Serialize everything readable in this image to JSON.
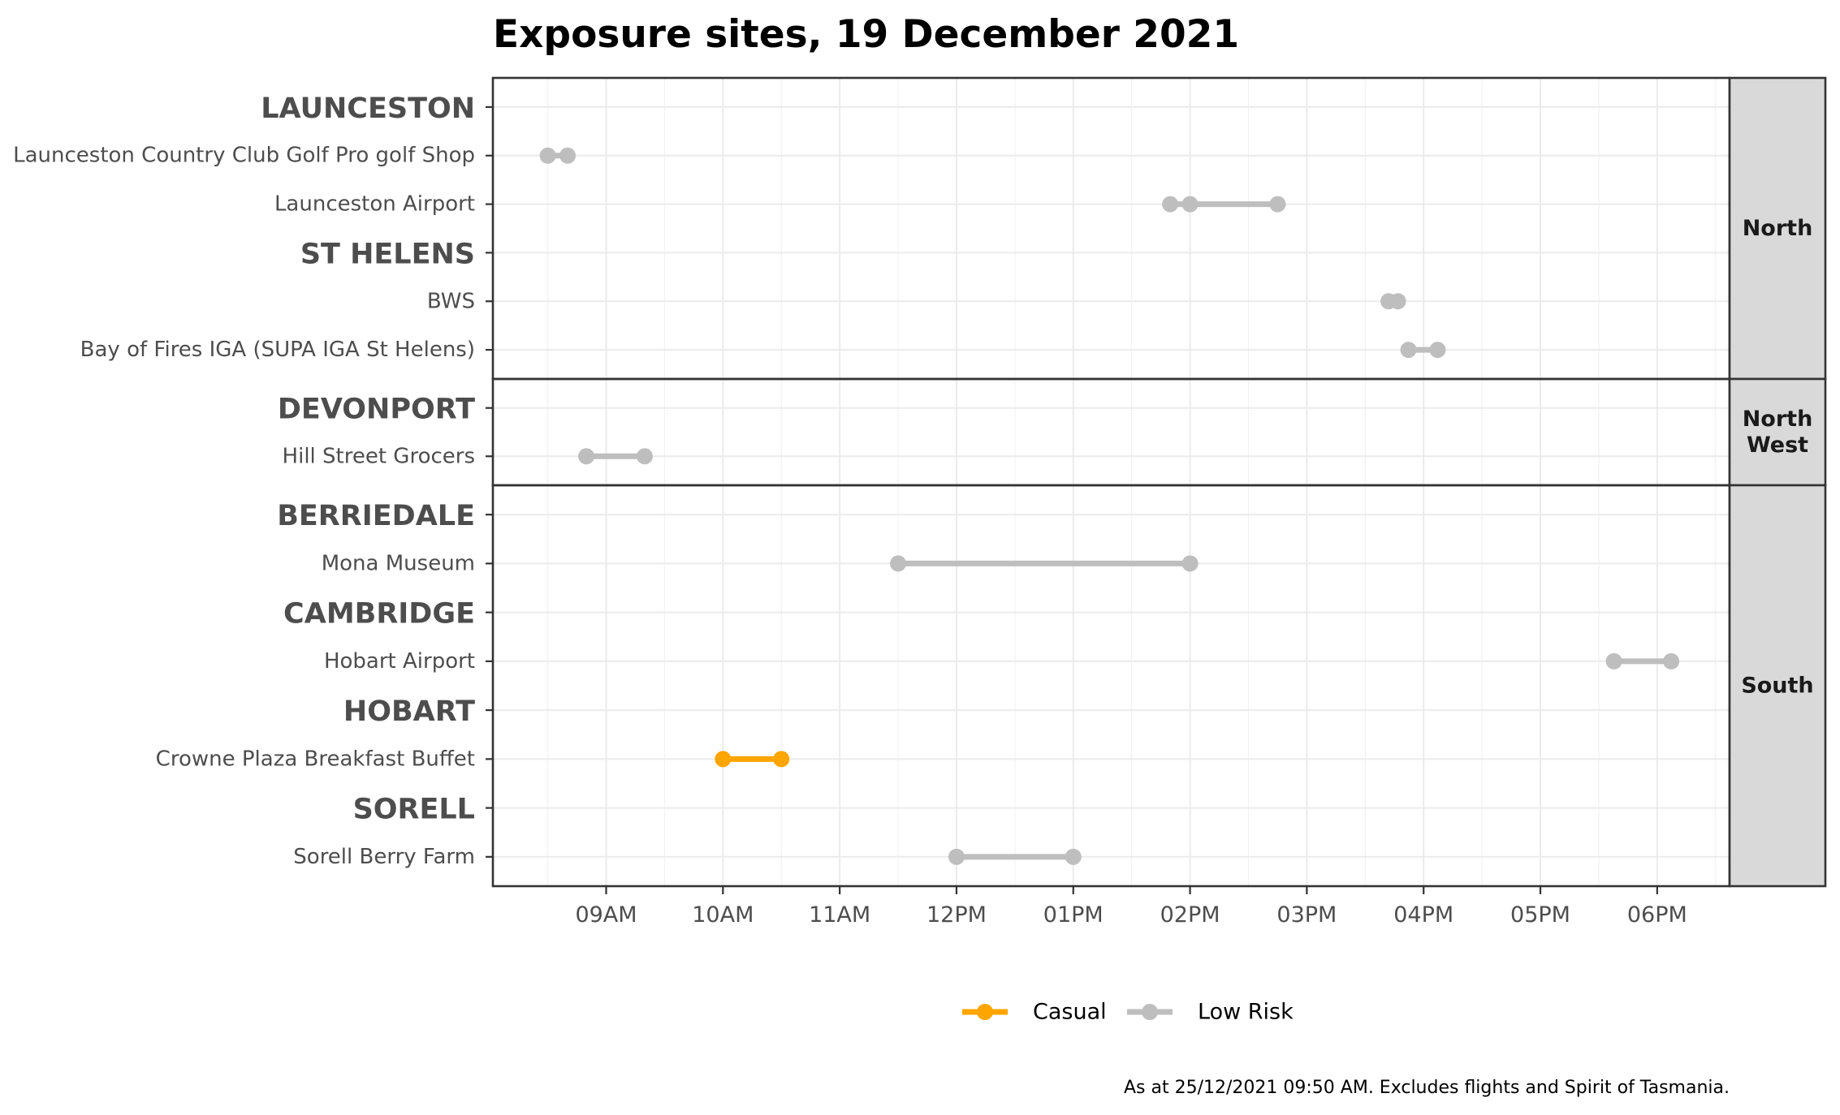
{
  "chart_data": {
    "type": "dumbbell",
    "title": "Exposure sites, 19 December 2021",
    "caption": "As at 25/12/2021 09:50 AM. Excludes flights and Spirit of Tasmania.",
    "x_ticks": [
      "09AM",
      "10AM",
      "11AM",
      "12PM",
      "01PM",
      "02PM",
      "03PM",
      "04PM",
      "05PM",
      "06PM"
    ],
    "x_tick_hours": [
      9,
      10,
      11,
      12,
      13,
      14,
      15,
      16,
      17,
      18
    ],
    "xlim": [
      8.03,
      18.62
    ],
    "grid": true,
    "legend_position": "bottom",
    "legend": [
      {
        "name": "Casual",
        "color": "#FFA500"
      },
      {
        "name": "Low Risk",
        "color": "#BEBEBE"
      }
    ],
    "panels": [
      {
        "region": "North",
        "rows": [
          {
            "label": "LAUNCESTON",
            "heading": true
          },
          {
            "label": "Launceston Country Club Golf Pro golf Shop",
            "risk": "Low Risk",
            "times": [
              8.5,
              8.67
            ]
          },
          {
            "label": "Launceston Airport",
            "risk": "Low Risk",
            "times": [
              13.83,
              14.0,
              14.75
            ]
          },
          {
            "label": "ST HELENS",
            "heading": true
          },
          {
            "label": "BWS",
            "risk": "Low Risk",
            "times": [
              15.7,
              15.78
            ]
          },
          {
            "label": "Bay of Fires IGA (SUPA IGA St Helens)",
            "risk": "Low Risk",
            "times": [
              15.87,
              16.12
            ]
          }
        ]
      },
      {
        "region": "North West",
        "rows": [
          {
            "label": "DEVONPORT",
            "heading": true
          },
          {
            "label": "Hill Street Grocers",
            "risk": "Low Risk",
            "times": [
              8.83,
              9.33
            ]
          }
        ]
      },
      {
        "region": "South",
        "rows": [
          {
            "label": "BERRIEDALE",
            "heading": true
          },
          {
            "label": "Mona Museum",
            "risk": "Low Risk",
            "times": [
              11.5,
              14.0
            ]
          },
          {
            "label": "CAMBRIDGE",
            "heading": true
          },
          {
            "label": "Hobart Airport",
            "risk": "Low Risk",
            "times": [
              17.63,
              18.12
            ]
          },
          {
            "label": "HOBART",
            "heading": true
          },
          {
            "label": "Crowne Plaza Breakfast Buffet",
            "risk": "Casual",
            "times": [
              10.0,
              10.5
            ]
          },
          {
            "label": "SORELL",
            "heading": true
          },
          {
            "label": "Sorell Berry Farm",
            "risk": "Low Risk",
            "times": [
              12.0,
              13.0
            ]
          }
        ]
      }
    ]
  }
}
